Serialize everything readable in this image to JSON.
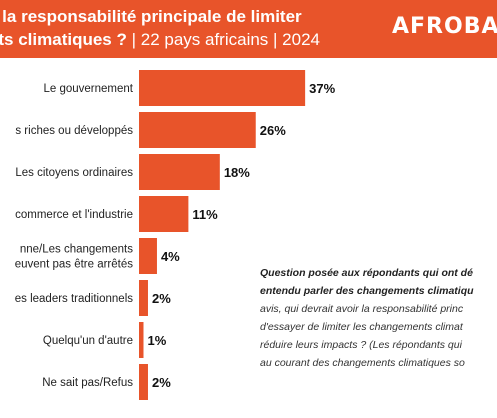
{
  "header": {
    "title_line1": "e la responsabilité principale de limiter",
    "title_line2_bold": "nts climatiques ?",
    "title_line2_rest": " | 22 pays africains | 2024",
    "brand": "AFROBAR",
    "colors": {
      "accent": "#e8542a",
      "text_on_accent": "#ffffff"
    }
  },
  "chart_data": {
    "type": "bar",
    "orientation": "horizontal",
    "categories": [
      [
        "Le gouvernement"
      ],
      [
        "s riches ou développés"
      ],
      [
        "Les citoyens ordinaires"
      ],
      [
        "commerce et l'industrie"
      ],
      [
        "nne/Les changements",
        "euvent pas être arrêtés"
      ],
      [
        "es leaders traditionnels"
      ],
      [
        "Quelqu'un d'autre"
      ],
      [
        "Ne sait pas/Refus"
      ]
    ],
    "values": [
      37,
      26,
      18,
      11,
      4,
      2,
      1,
      2
    ],
    "value_labels": [
      "37%",
      "26%",
      "18%",
      "11%",
      "4%",
      "2%",
      "1%",
      "2%"
    ],
    "unit": "%",
    "bar_color": "#e8542a",
    "xlim": [
      0,
      50
    ],
    "grid": false
  },
  "note": {
    "lines_bold": [
      "Question posée aux répondants qui ont dé",
      "entendu parler des changements climatiqu"
    ],
    "lines_rest": [
      "avis, qui devrait avoir la responsabilité princ",
      "d'essayer de limiter les changements climat",
      "réduire leurs impacts ? (Les répondants qui",
      "au courant des changements climatiques so"
    ]
  }
}
